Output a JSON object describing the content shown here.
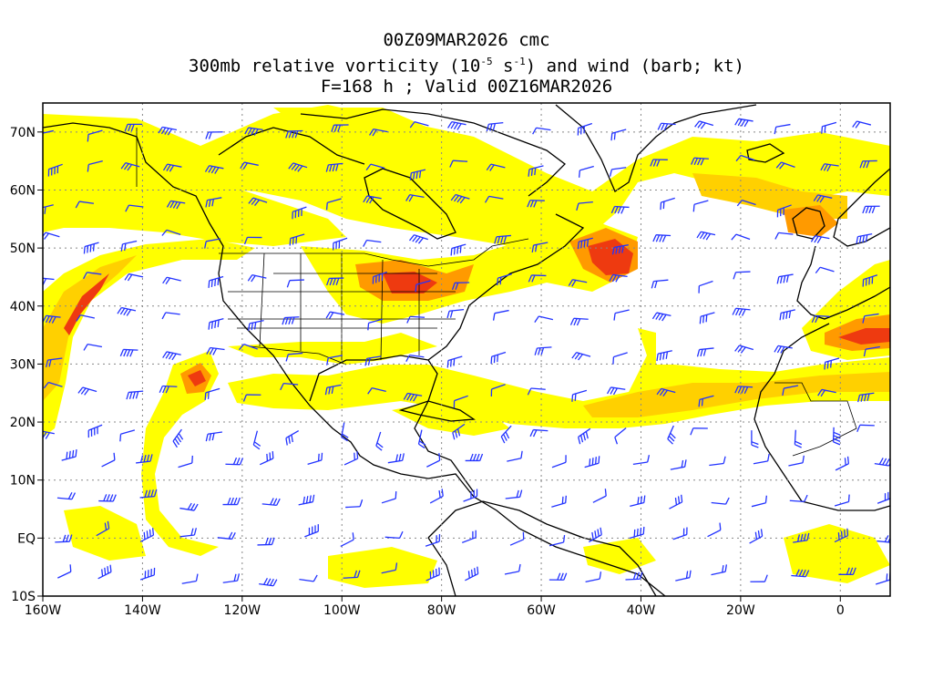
{
  "title": {
    "line1": "00Z09MAR2026 cmc",
    "line2_pre": "300mb relative vorticity (10",
    "line2_exp1": "-5",
    "line2_mid": " s",
    "line2_exp2": "-1",
    "line2_post": ") and wind (barb; kt)",
    "line3": "F=168 h ; Valid 00Z16MAR2026"
  },
  "axes": {
    "lon_labels": [
      "160W",
      "140W",
      "120W",
      "100W",
      "80W",
      "60W",
      "40W",
      "20W",
      "0"
    ],
    "lon_values": [
      -160,
      -140,
      -120,
      -100,
      -80,
      -60,
      -40,
      -20,
      0
    ],
    "lat_labels": [
      "70N",
      "60N",
      "50N",
      "40N",
      "30N",
      "20N",
      "10N",
      "EQ",
      "10S"
    ],
    "lat_values": [
      70,
      60,
      50,
      40,
      30,
      20,
      10,
      0,
      -10
    ],
    "lon_range": [
      -160,
      10
    ],
    "lat_range": [
      -10,
      75
    ],
    "grid": "dotted"
  },
  "colors": {
    "contour_low": "#ffff00",
    "contour_mid": "#ffd000",
    "contour_high": "#ff9a00",
    "contour_peak": "#ee3a10",
    "coastline": "#000000",
    "wind_barb": "#2233ff",
    "grid": "#888888"
  }
}
